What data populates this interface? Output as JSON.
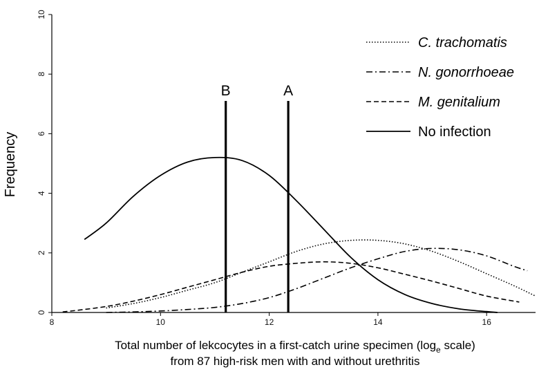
{
  "chart_data": {
    "type": "line",
    "title": "",
    "ylabel": "Frequency",
    "xlabel_line1_prefix": "Total number of  lekcocytes in a first-catch urine specimen (log",
    "xlabel_line1_sub": "e",
    "xlabel_line1_suffix": " scale)",
    "xlabel_line2": "from 87 high-risk men with and without urethritis",
    "xlim": [
      8,
      16.9
    ],
    "ylim": [
      0,
      10
    ],
    "x_ticks": [
      8,
      10,
      12,
      14,
      16
    ],
    "y_ticks": [
      0,
      2,
      4,
      6,
      8,
      10
    ],
    "grid": false,
    "legend_position": "top-right",
    "series": [
      {
        "name": "C. trachomatis",
        "style": "dotted",
        "italic": true,
        "x": [
          9.0,
          9.5,
          10.0,
          10.5,
          11.0,
          11.5,
          12.0,
          12.5,
          13.0,
          13.5,
          14.0,
          14.5,
          15.0,
          15.5,
          16.0,
          16.5,
          16.9
        ],
        "y": [
          0.15,
          0.3,
          0.5,
          0.75,
          1.0,
          1.35,
          1.7,
          2.05,
          2.3,
          2.42,
          2.42,
          2.3,
          2.05,
          1.7,
          1.3,
          0.9,
          0.55
        ]
      },
      {
        "name": "N. gonorrhoeae",
        "style": "dashdot",
        "italic": true,
        "x": [
          9.0,
          9.5,
          10.0,
          10.5,
          11.0,
          11.5,
          12.0,
          12.5,
          13.0,
          13.5,
          14.0,
          14.5,
          15.0,
          15.5,
          16.0,
          16.5,
          16.75
        ],
        "y": [
          0.0,
          0.02,
          0.05,
          0.1,
          0.17,
          0.3,
          0.5,
          0.8,
          1.15,
          1.5,
          1.8,
          2.05,
          2.15,
          2.1,
          1.9,
          1.55,
          1.4
        ]
      },
      {
        "name": "M. genitalium",
        "style": "dashed",
        "italic": true,
        "x": [
          8.2,
          8.5,
          9.0,
          9.5,
          10.0,
          10.5,
          11.0,
          11.5,
          12.0,
          12.5,
          13.0,
          13.5,
          14.0,
          14.5,
          15.0,
          15.5,
          16.0,
          16.6
        ],
        "y": [
          0.02,
          0.08,
          0.2,
          0.38,
          0.6,
          0.85,
          1.1,
          1.35,
          1.55,
          1.65,
          1.7,
          1.65,
          1.5,
          1.28,
          1.05,
          0.8,
          0.55,
          0.35
        ]
      },
      {
        "name": "No infection",
        "style": "solid",
        "italic": false,
        "x": [
          8.6,
          9.0,
          9.5,
          10.0,
          10.5,
          11.0,
          11.5,
          12.0,
          12.5,
          13.0,
          13.5,
          14.0,
          14.5,
          15.0,
          15.5,
          16.0,
          16.2
        ],
        "y": [
          2.45,
          3.0,
          3.9,
          4.6,
          5.05,
          5.2,
          5.1,
          4.6,
          3.75,
          2.8,
          1.85,
          1.1,
          0.6,
          0.3,
          0.12,
          0.03,
          0.0
        ]
      }
    ],
    "cutoffs": [
      {
        "label": "B",
        "x": 11.2,
        "y_top": 7.1
      },
      {
        "label": "A",
        "x": 12.35,
        "y_top": 7.1
      }
    ]
  }
}
